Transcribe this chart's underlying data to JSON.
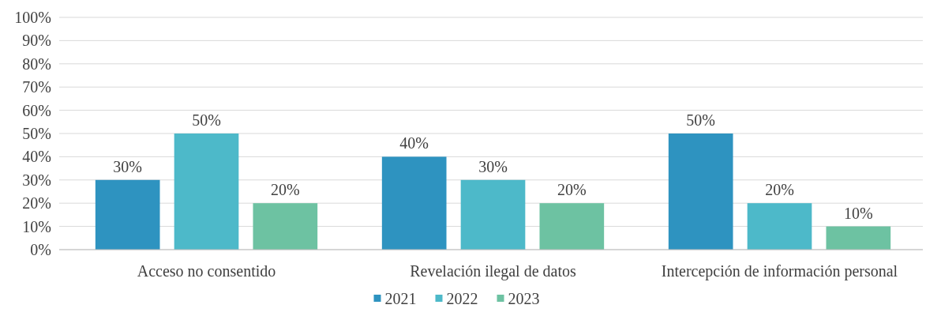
{
  "chart_data": {
    "type": "bar",
    "categories": [
      "Acceso no consentido",
      "Revelación ilegal de datos",
      "Intercepción de información personal"
    ],
    "series": [
      {
        "name": "2021",
        "color": "#2e93c0",
        "values": [
          30,
          40,
          50
        ]
      },
      {
        "name": "2022",
        "color": "#4db9c9",
        "values": [
          50,
          30,
          20
        ]
      },
      {
        "name": "2023",
        "color": "#6dc2a2",
        "values": [
          20,
          20,
          10
        ]
      }
    ],
    "ylim": [
      0,
      100
    ],
    "yticks": [
      {
        "value": 0,
        "label": "0%"
      },
      {
        "value": 10,
        "label": "10%"
      },
      {
        "value": 20,
        "label": "20%"
      },
      {
        "value": 30,
        "label": "30%"
      },
      {
        "value": 40,
        "label": "40%"
      },
      {
        "value": 50,
        "label": "50%"
      },
      {
        "value": 60,
        "label": "60%"
      },
      {
        "value": 70,
        "label": "70%"
      },
      {
        "value": 80,
        "label": "80%"
      },
      {
        "value": 90,
        "label": "90%"
      },
      {
        "value": 100,
        "label": "100%"
      }
    ],
    "value_labels": [
      [
        "30%",
        "40%",
        "50%"
      ],
      [
        "50%",
        "30%",
        "20%"
      ],
      [
        "20%",
        "20%",
        "10%"
      ]
    ],
    "grid": "y",
    "legend": "bottom"
  }
}
